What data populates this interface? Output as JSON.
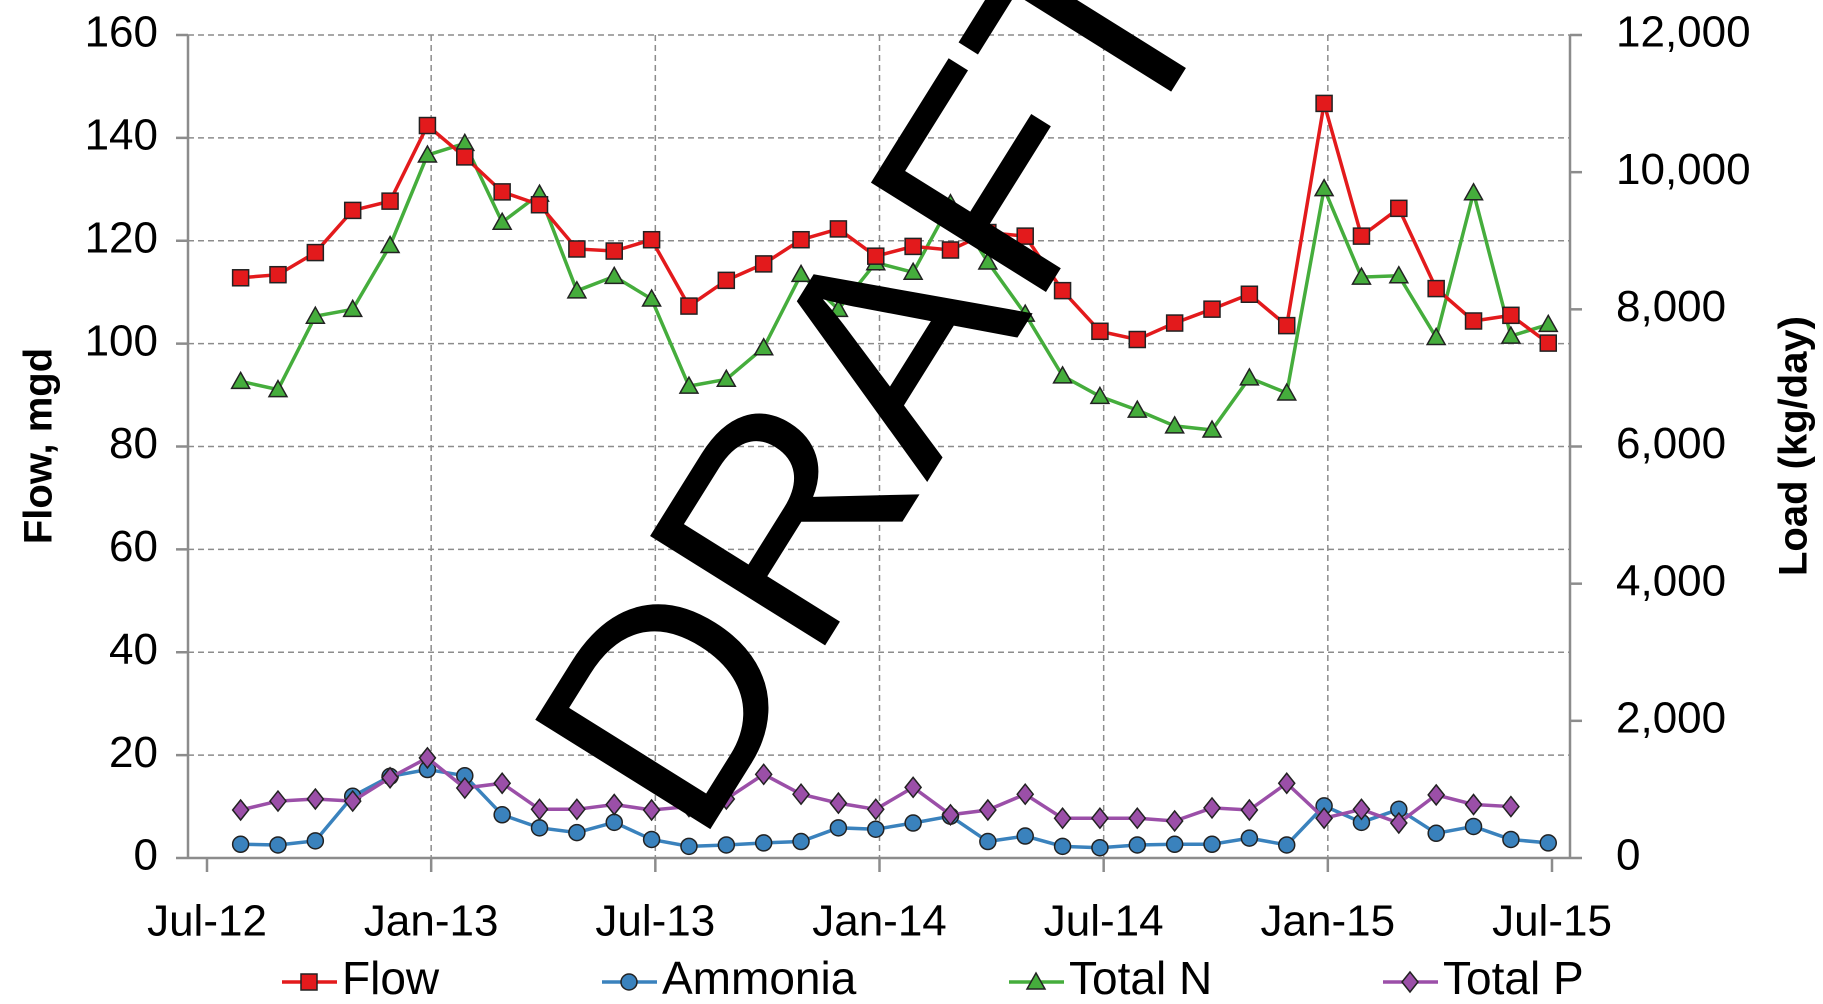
{
  "chart_data": {
    "type": "line",
    "watermark": "DRAFT",
    "y_label": "Flow, mgd",
    "y2_label": "Load (kg/day)",
    "x": [
      "2012-07",
      "2012-08",
      "2012-09",
      "2012-10",
      "2012-11",
      "2012-12",
      "2013-01",
      "2013-02",
      "2013-03",
      "2013-04",
      "2013-05",
      "2013-06",
      "2013-07",
      "2013-08",
      "2013-09",
      "2013-10",
      "2013-11",
      "2013-12",
      "2014-01",
      "2014-02",
      "2014-03",
      "2014-04",
      "2014-05",
      "2014-06",
      "2014-07",
      "2014-08",
      "2014-09",
      "2014-10",
      "2014-11",
      "2014-12",
      "2015-01",
      "2015-02",
      "2015-03",
      "2015-04",
      "2015-05",
      "2015-06"
    ],
    "xlim": [
      "2012-07",
      "2015-07"
    ],
    "xticks": [
      {
        "value": "2012-07",
        "label": "Jul-12"
      },
      {
        "value": "2013-01",
        "label": "Jan-13"
      },
      {
        "value": "2013-07",
        "label": "Jul-13"
      },
      {
        "value": "2014-01",
        "label": "Jan-14"
      },
      {
        "value": "2014-07",
        "label": "Jul-14"
      },
      {
        "value": "2015-01",
        "label": "Jan-15"
      },
      {
        "value": "2015-07",
        "label": "Jul-15"
      }
    ],
    "ylim": [
      0,
      160
    ],
    "yticks": [
      0,
      20,
      40,
      60,
      80,
      100,
      120,
      140,
      160
    ],
    "y2lim": [
      0,
      12000
    ],
    "y2ticks": [
      0,
      {
        "value": 2000,
        "label": "2,000"
      },
      {
        "value": 4000,
        "label": "4,000"
      },
      {
        "value": 6000,
        "label": "6,000"
      },
      {
        "value": 8000,
        "label": "8,000"
      },
      {
        "value": 10000,
        "label": "10,000"
      },
      {
        "value": 12000,
        "label": "12,000"
      }
    ],
    "grid": true,
    "legend": "bottom",
    "series": [
      {
        "name": "Flow",
        "color": "#e31a1c",
        "marker": "square",
        "values": [
          112.8,
          113.4,
          117.7,
          125.9,
          127.7,
          142.4,
          136.3,
          129.5,
          127,
          118.4,
          118,
          120.2,
          107.3,
          112.3,
          115.5,
          120.2,
          122.3,
          117,
          118.9,
          118.2,
          121.6,
          120.9,
          110.3,
          102.4,
          100.8,
          104,
          106.7,
          109.6,
          103.5,
          146.7,
          120.9,
          126.3,
          110.7,
          104.4,
          105.5,
          100.1
        ]
      },
      {
        "name": "Ammonia",
        "color": "#3a82bd",
        "marker": "circle",
        "axis": "y2",
        "values": [
          200,
          190,
          250,
          900,
          1190,
          1290,
          1200,
          630,
          440,
          370,
          520,
          270,
          170,
          190,
          220,
          240,
          440,
          420,
          510,
          610,
          240,
          320,
          170,
          150,
          190,
          200,
          200,
          290,
          190,
          760,
          520,
          710,
          360,
          460,
          270,
          220
        ]
      },
      {
        "name": "Total N",
        "color": "#45ad3c",
        "marker": "triangle",
        "axis": "y2",
        "values": [
          6950,
          6830,
          7900,
          8000,
          8930,
          10250,
          10420,
          9270,
          9680,
          8270,
          8480,
          8150,
          6880,
          6980,
          7440,
          8510,
          8000,
          8680,
          8540,
          9540,
          8690,
          7930,
          7030,
          6730,
          6530,
          6300,
          6240,
          7000,
          6780,
          9760,
          8470,
          8490,
          7590,
          9700,
          7610,
          7780
        ]
      },
      {
        "name": "Total P",
        "color": "#9b4fa8",
        "marker": "diamond",
        "axis": "y2",
        "values": [
          700,
          830,
          860,
          830,
          1170,
          1460,
          1020,
          1090,
          710,
          710,
          780,
          700,
          750,
          860,
          1220,
          930,
          800,
          710,
          1030,
          630,
          700,
          930,
          580,
          580,
          580,
          540,
          730,
          700,
          1090,
          580,
          710,
          510,
          920,
          780,
          750,
          null
        ]
      }
    ]
  }
}
